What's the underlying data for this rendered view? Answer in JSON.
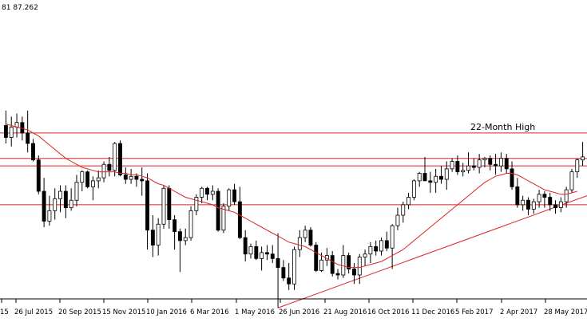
{
  "header": {
    "text": "81 87.262"
  },
  "chart_data": {
    "type": "candlestick",
    "title": "",
    "xlabel": "",
    "ylabel": "",
    "grid": false,
    "ylim": [
      76,
      96
    ],
    "x_tick_labels": [
      "15",
      "26 Jul 2015",
      "20 Sep 2015",
      "15 Nov 2015",
      "10 Jan 2016",
      "6 Mar 2016",
      "1 May 2016",
      "26 Jun 2016",
      "21 Aug 2016",
      "16 Oct 2016",
      "11 Dec 2016",
      "5 Feb 2017",
      "2 Apr 2017",
      "28 May 2017"
    ],
    "candles": [
      [
        87.6,
        88.6,
        86.4,
        86.8
      ],
      [
        86.8,
        88.2,
        86.2,
        87.5
      ],
      [
        87.5,
        88.4,
        86.8,
        87.8
      ],
      [
        87.8,
        88.2,
        86.6,
        87.1
      ],
      [
        87.1,
        88.6,
        85.8,
        86.4
      ],
      [
        86.4,
        86.7,
        85.2,
        85.3
      ],
      [
        85.3,
        85.6,
        83.0,
        83.2
      ],
      [
        83.2,
        84.1,
        80.8,
        81.2
      ],
      [
        81.2,
        82.9,
        80.9,
        81.9
      ],
      [
        81.9,
        83.4,
        81.3,
        82.7
      ],
      [
        82.7,
        83.6,
        81.8,
        83.2
      ],
      [
        83.2,
        83.6,
        81.4,
        82.1
      ],
      [
        82.1,
        83.4,
        81.9,
        82.6
      ],
      [
        82.6,
        84.3,
        82.2,
        83.8
      ],
      [
        83.8,
        84.6,
        83.2,
        84.5
      ],
      [
        84.5,
        84.6,
        83.4,
        83.5
      ],
      [
        83.5,
        84.2,
        82.6,
        83.9
      ],
      [
        83.9,
        84.6,
        83.4,
        84.1
      ],
      [
        84.1,
        85.2,
        83.8,
        85.0
      ],
      [
        85.0,
        85.5,
        84.2,
        84.6
      ],
      [
        84.6,
        86.5,
        84.2,
        86.4
      ],
      [
        86.4,
        86.6,
        84.2,
        84.3
      ],
      [
        84.3,
        84.8,
        83.7,
        84.0
      ],
      [
        84.0,
        84.7,
        83.7,
        84.2
      ],
      [
        84.2,
        84.4,
        83.5,
        84.0
      ],
      [
        84.0,
        84.8,
        82.9,
        83.9
      ],
      [
        83.9,
        84.4,
        79.3,
        80.6
      ],
      [
        80.6,
        81.6,
        78.8,
        79.6
      ],
      [
        79.6,
        81.4,
        78.9,
        81.0
      ],
      [
        81.0,
        83.6,
        80.7,
        83.4
      ],
      [
        83.4,
        83.6,
        80.7,
        81.3
      ],
      [
        81.3,
        81.6,
        79.3,
        80.5
      ],
      [
        80.5,
        80.7,
        77.8,
        79.9
      ],
      [
        79.9,
        80.7,
        79.6,
        80.1
      ],
      [
        80.1,
        82.2,
        79.9,
        81.9
      ],
      [
        81.9,
        83.0,
        81.6,
        82.8
      ],
      [
        82.8,
        83.5,
        82.4,
        83.4
      ],
      [
        83.4,
        83.5,
        82.6,
        83.0
      ],
      [
        83.0,
        83.6,
        82.6,
        83.2
      ],
      [
        83.2,
        83.4,
        80.5,
        80.6
      ],
      [
        80.6,
        82.4,
        80.4,
        82.2
      ],
      [
        82.2,
        83.4,
        81.9,
        83.3
      ],
      [
        83.3,
        83.7,
        82.3,
        82.5
      ],
      [
        82.5,
        83.5,
        80.0,
        80.1
      ],
      [
        80.1,
        80.6,
        78.5,
        79.0
      ],
      [
        79.0,
        79.7,
        78.7,
        79.5
      ],
      [
        79.5,
        79.9,
        78.6,
        78.7
      ],
      [
        78.7,
        79.5,
        77.9,
        79.1
      ],
      [
        79.1,
        79.6,
        78.6,
        79.0
      ],
      [
        79.0,
        79.6,
        78.4,
        78.7
      ],
      [
        78.7,
        80.4,
        75.4,
        78.1
      ],
      [
        78.1,
        78.6,
        77.2,
        77.4
      ],
      [
        77.4,
        78.4,
        76.6,
        77.0
      ],
      [
        77.0,
        79.5,
        76.6,
        79.3
      ],
      [
        79.3,
        80.6,
        78.8,
        80.1
      ],
      [
        80.1,
        80.9,
        79.8,
        80.6
      ],
      [
        80.6,
        80.8,
        79.5,
        79.6
      ],
      [
        79.6,
        79.8,
        77.8,
        77.9
      ],
      [
        77.9,
        79.1,
        77.8,
        78.6
      ],
      [
        78.6,
        79.4,
        78.2,
        78.9
      ],
      [
        78.9,
        79.2,
        77.5,
        77.7
      ],
      [
        77.7,
        78.0,
        77.3,
        77.6
      ],
      [
        77.6,
        79.6,
        77.4,
        78.9
      ],
      [
        78.9,
        79.1,
        77.7,
        78.0
      ],
      [
        78.0,
        78.4,
        77.0,
        77.6
      ],
      [
        77.6,
        79.0,
        77.0,
        78.8
      ],
      [
        78.8,
        79.3,
        78.2,
        79.0
      ],
      [
        79.0,
        79.8,
        78.4,
        79.5
      ],
      [
        79.5,
        79.9,
        78.9,
        79.2
      ],
      [
        79.2,
        80.1,
        78.9,
        79.9
      ],
      [
        79.9,
        80.5,
        79.2,
        79.4
      ],
      [
        79.4,
        81.0,
        78.0,
        80.9
      ],
      [
        80.9,
        82.1,
        80.6,
        81.6
      ],
      [
        81.6,
        82.5,
        81.1,
        82.3
      ],
      [
        82.3,
        83.1,
        82.0,
        82.8
      ],
      [
        82.8,
        84.0,
        82.6,
        83.9
      ],
      [
        83.9,
        84.5,
        83.5,
        84.4
      ],
      [
        84.4,
        85.5,
        84.0,
        83.9
      ],
      [
        83.9,
        84.5,
        83.1,
        83.8
      ],
      [
        83.8,
        84.7,
        83.1,
        84.2
      ],
      [
        84.2,
        84.9,
        83.7,
        84.0
      ],
      [
        84.0,
        85.2,
        83.3,
        84.7
      ],
      [
        84.7,
        85.4,
        84.5,
        85.2
      ],
      [
        85.2,
        85.6,
        84.3,
        84.5
      ],
      [
        84.5,
        85.1,
        84.2,
        84.6
      ],
      [
        84.6,
        85.8,
        84.4,
        84.9
      ],
      [
        84.9,
        85.4,
        84.6,
        84.8
      ],
      [
        84.8,
        85.7,
        84.4,
        85.3
      ],
      [
        85.3,
        85.5,
        84.8,
        85.4
      ],
      [
        85.4,
        85.6,
        84.6,
        85.0
      ],
      [
        85.0,
        85.7,
        84.3,
        84.9
      ],
      [
        84.9,
        85.8,
        84.5,
        85.4
      ],
      [
        85.4,
        85.7,
        84.4,
        84.7
      ],
      [
        84.7,
        85.2,
        83.3,
        83.5
      ],
      [
        83.5,
        84.1,
        82.1,
        82.3
      ],
      [
        82.3,
        82.9,
        81.9,
        82.6
      ],
      [
        82.6,
        82.8,
        81.6,
        82.0
      ],
      [
        82.0,
        82.7,
        81.7,
        82.5
      ],
      [
        82.5,
        83.3,
        82.1,
        83.0
      ],
      [
        83.0,
        83.2,
        82.1,
        82.8
      ],
      [
        82.8,
        83.1,
        81.9,
        82.3
      ],
      [
        82.3,
        82.6,
        81.7,
        82.1
      ],
      [
        82.1,
        82.8,
        81.8,
        82.5
      ],
      [
        82.5,
        83.5,
        82.1,
        83.3
      ],
      [
        83.3,
        84.7,
        83.1,
        84.5
      ],
      [
        84.5,
        85.4,
        84.1,
        85.3
      ],
      [
        85.3,
        86.5,
        84.9,
        85.5
      ]
    ],
    "series": [
      {
        "name": "",
        "type": "moving-average",
        "color": "#dd2222",
        "values": [
          87.7,
          87.6,
          87.5,
          87.4,
          87.3,
          87.1,
          86.9,
          86.6,
          86.3,
          86.0,
          85.7,
          85.4,
          85.2,
          85.0,
          84.8,
          84.7,
          84.6,
          84.5,
          84.5,
          84.5,
          84.5,
          84.4,
          84.4,
          84.3,
          84.3,
          84.2,
          84.1,
          83.9,
          83.7,
          83.6,
          83.4,
          83.2,
          83.0,
          82.8,
          82.7,
          82.6,
          82.5,
          82.4,
          82.3,
          82.1,
          82.0,
          81.9,
          81.8,
          81.6,
          81.4,
          81.2,
          81.0,
          80.8,
          80.6,
          80.4,
          80.2,
          80.0,
          79.8,
          79.7,
          79.6,
          79.5,
          79.3,
          79.1,
          78.9,
          78.7,
          78.5,
          78.3,
          78.2,
          78.1,
          78.1,
          78.1,
          78.2,
          78.3,
          78.4,
          78.5,
          78.7,
          78.9,
          79.1,
          79.3,
          79.6,
          79.9,
          80.2,
          80.5,
          80.8,
          81.1,
          81.4,
          81.7,
          82.0,
          82.3,
          82.6,
          82.9,
          83.2,
          83.5,
          83.8,
          84.0,
          84.2,
          84.3,
          84.4,
          84.4,
          84.3,
          84.1,
          83.9,
          83.7,
          83.5,
          83.3,
          83.2,
          83.1,
          83.0,
          83.0,
          83.1,
          83.2
        ]
      }
    ],
    "horizontal_lines": [
      87.1,
      85.4,
      84.9,
      82.3
    ],
    "trendlines": [
      {
        "from": [
          50,
          75.4
        ],
        "to": [
          106,
          82.8
        ]
      }
    ],
    "annotations": [
      {
        "text": "22-Month High",
        "y": 87.1
      }
    ],
    "colors": {
      "up": "#ffffff",
      "down": "#000000",
      "outline": "#000000",
      "lines": "#dd2222"
    }
  }
}
